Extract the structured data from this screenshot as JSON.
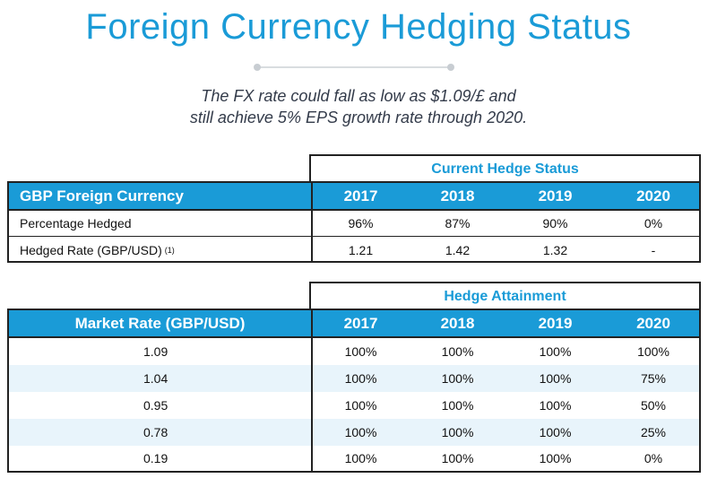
{
  "page": {
    "title": "Foreign Currency Hedging Status",
    "subtitle_line1": "The FX rate could fall as low as $1.09/£ and",
    "subtitle_line2": "still achieve 5% EPS growth rate through 2020.",
    "accent_color": "#1a9bd7"
  },
  "hedge_status": {
    "group_label": "Current Hedge Status",
    "headers": [
      "GBP Foreign Currency",
      "2017",
      "2018",
      "2019",
      "2020"
    ],
    "rows": [
      {
        "label": "Percentage Hedged",
        "footnote": "",
        "values": [
          "96%",
          "87%",
          "90%",
          "0%"
        ]
      },
      {
        "label": "Hedged Rate (GBP/USD)",
        "footnote": "(1)",
        "values": [
          "1.21",
          "1.42",
          "1.32",
          "-"
        ]
      }
    ]
  },
  "hedge_attainment": {
    "group_label": "Hedge Attainment",
    "headers": [
      "Market Rate (GBP/USD)",
      "2017",
      "2018",
      "2019",
      "2020"
    ],
    "rows": [
      {
        "rate": "1.09",
        "values": [
          "100%",
          "100%",
          "100%",
          "100%"
        ]
      },
      {
        "rate": "1.04",
        "values": [
          "100%",
          "100%",
          "100%",
          "75%"
        ]
      },
      {
        "rate": "0.95",
        "values": [
          "100%",
          "100%",
          "100%",
          "50%"
        ]
      },
      {
        "rate": "0.78",
        "values": [
          "100%",
          "100%",
          "100%",
          "25%"
        ]
      },
      {
        "rate": "0.19",
        "values": [
          "100%",
          "100%",
          "100%",
          "0%"
        ]
      }
    ]
  }
}
